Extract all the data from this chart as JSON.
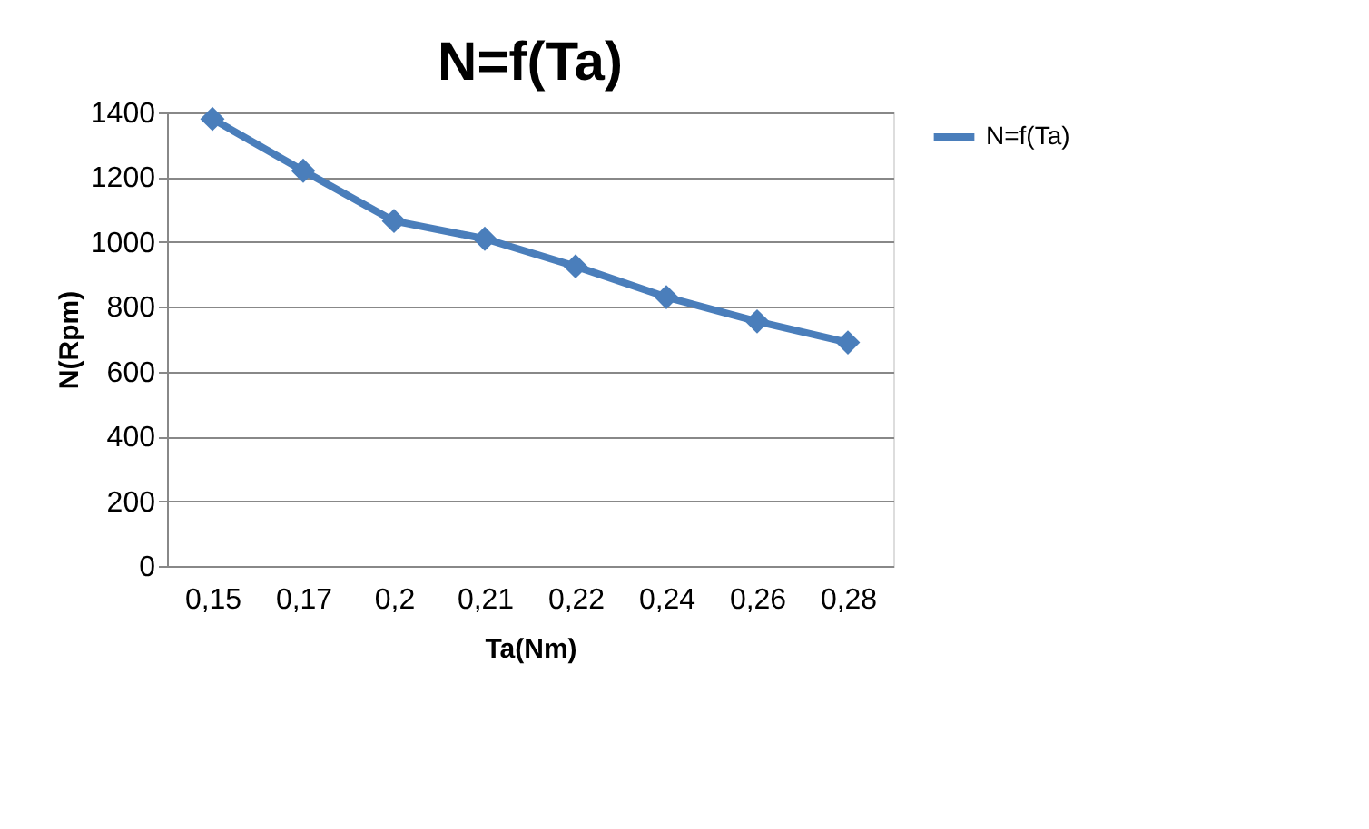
{
  "chart_data": {
    "type": "line",
    "title": "N=f(Ta)",
    "xlabel": "Ta(Nm)",
    "ylabel": "N(Rpm)",
    "categories": [
      "0,15",
      "0,17",
      "0,2",
      "0,21",
      "0,22",
      "0,24",
      "0,26",
      "0,28"
    ],
    "series": [
      {
        "name": "N=f(Ta)",
        "color": "#4a7ebb",
        "values": [
          1380,
          1220,
          1065,
          1010,
          925,
          830,
          755,
          690
        ]
      }
    ],
    "ylim": [
      0,
      1400
    ],
    "yticks": [
      0,
      200,
      400,
      600,
      800,
      1000,
      1200,
      1400
    ],
    "grid": "y",
    "legend": "right",
    "marker": "diamond",
    "line_style": "solid"
  }
}
